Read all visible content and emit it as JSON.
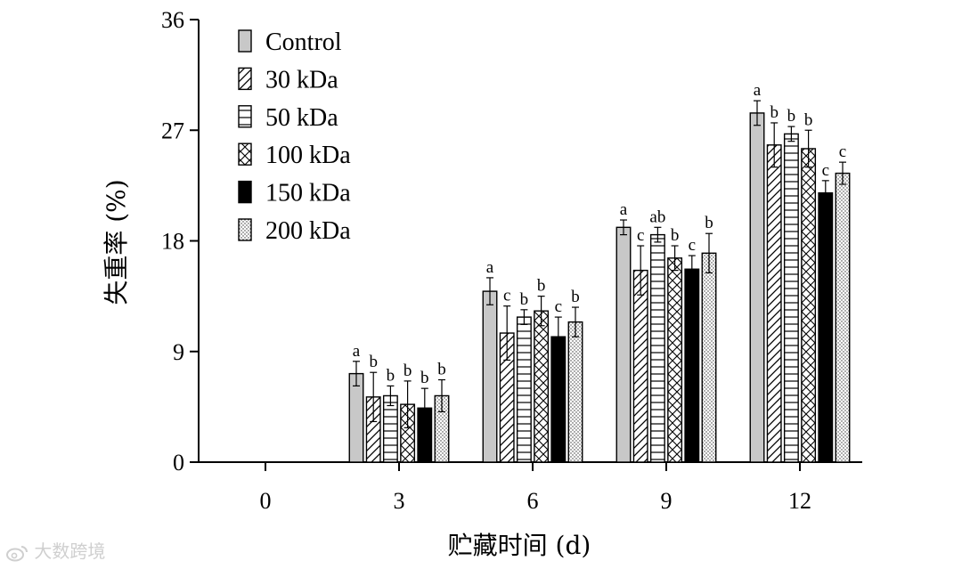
{
  "chart_data": {
    "type": "bar",
    "ylabel": "失重率 (%)",
    "xlabel": "贮藏时间 (d)",
    "categories": [
      "0",
      "3",
      "6",
      "9",
      "12"
    ],
    "ylim": [
      0,
      36
    ],
    "yticks": [
      "0",
      "9",
      "18",
      "27",
      "36"
    ],
    "legend_position": "top-left",
    "series": [
      {
        "name": "Control",
        "pattern": "gray",
        "values": [
          null,
          7.2,
          13.9,
          19.1,
          28.4
        ],
        "errors": [
          null,
          1.0,
          1.1,
          0.6,
          1.0
        ],
        "labels": [
          "",
          "a",
          "a",
          "a",
          "a"
        ]
      },
      {
        "name": "30 kDa",
        "pattern": "diagonal",
        "values": [
          null,
          5.3,
          10.5,
          15.6,
          25.8
        ],
        "errors": [
          null,
          2.0,
          2.2,
          2.0,
          1.8
        ],
        "labels": [
          "",
          "b",
          "c",
          "c",
          "b"
        ]
      },
      {
        "name": "50 kDa",
        "pattern": "horizontal",
        "values": [
          null,
          5.4,
          11.8,
          18.5,
          26.7
        ],
        "errors": [
          null,
          0.8,
          0.6,
          0.6,
          0.6
        ],
        "labels": [
          "",
          "b",
          "b",
          "ab",
          "b"
        ]
      },
      {
        "name": "100 kDa",
        "pattern": "cross",
        "values": [
          null,
          4.7,
          12.3,
          16.6,
          25.5
        ],
        "errors": [
          null,
          1.9,
          1.2,
          1.0,
          1.5
        ],
        "labels": [
          "",
          "b",
          "b",
          "b",
          "b"
        ]
      },
      {
        "name": "150 kDa",
        "pattern": "black",
        "values": [
          null,
          4.4,
          10.2,
          15.7,
          21.9
        ],
        "errors": [
          null,
          1.6,
          1.6,
          1.1,
          1.0
        ],
        "labels": [
          "",
          "b",
          "c",
          "c",
          "c"
        ]
      },
      {
        "name": "200 kDa",
        "pattern": "dots",
        "values": [
          null,
          5.4,
          11.4,
          17.0,
          23.5
        ],
        "errors": [
          null,
          1.3,
          1.2,
          1.6,
          0.9
        ],
        "labels": [
          "",
          "b",
          "b",
          "b",
          "c"
        ]
      }
    ]
  },
  "watermark": {
    "text": "大数跨境",
    "icon": "weibo-logo-icon"
  }
}
